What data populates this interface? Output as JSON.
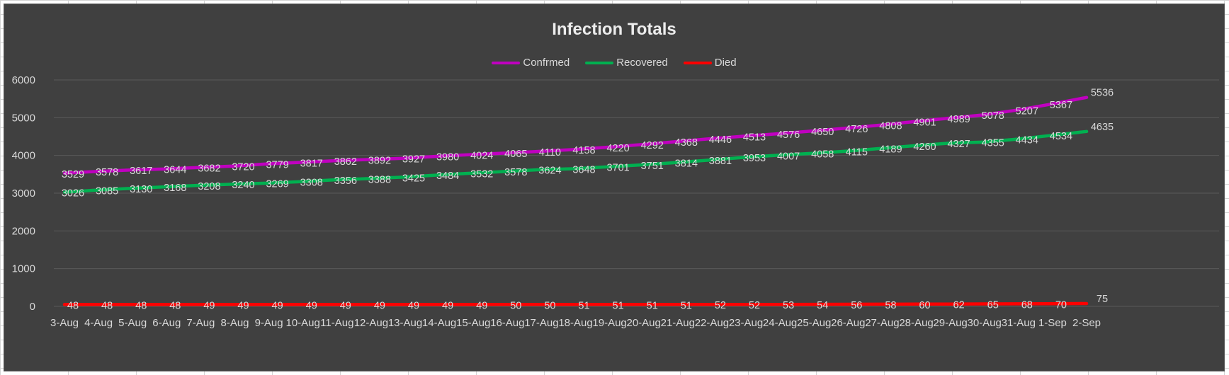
{
  "chart_data": {
    "type": "line",
    "title": "Infection Totals",
    "xlabel": "",
    "ylabel": "",
    "ylim": [
      0,
      6000
    ],
    "yticks": [
      0,
      1000,
      2000,
      3000,
      4000,
      5000,
      6000
    ],
    "grid": true,
    "legend_position": "top",
    "categories": [
      "3-Aug",
      "4-Aug",
      "5-Aug",
      "6-Aug",
      "7-Aug",
      "8-Aug",
      "9-Aug",
      "10-Aug",
      "11-Aug",
      "12-Aug",
      "13-Aug",
      "14-Aug",
      "15-Aug",
      "16-Aug",
      "17-Aug",
      "18-Aug",
      "19-Aug",
      "20-Aug",
      "21-Aug",
      "22-Aug",
      "23-Aug",
      "24-Aug",
      "25-Aug",
      "26-Aug",
      "27-Aug",
      "28-Aug",
      "29-Aug",
      "30-Aug",
      "31-Aug",
      "1-Sep",
      "2-Sep"
    ],
    "series": [
      {
        "name": "Confrmed",
        "color": "#c000c0",
        "values": [
          3529,
          3578,
          3617,
          3644,
          3682,
          3720,
          3779,
          3817,
          3862,
          3892,
          3927,
          3980,
          4024,
          4065,
          4110,
          4158,
          4220,
          4292,
          4368,
          4446,
          4513,
          4576,
          4650,
          4726,
          4808,
          4901,
          4989,
          5078,
          5207,
          5367,
          5536
        ]
      },
      {
        "name": "Recovered",
        "color": "#00b050",
        "values": [
          3026,
          3085,
          3130,
          3168,
          3208,
          3240,
          3269,
          3308,
          3356,
          3388,
          3425,
          3484,
          3532,
          3578,
          3624,
          3648,
          3701,
          3751,
          3814,
          3881,
          3953,
          4007,
          4058,
          4115,
          4189,
          4260,
          4327,
          4355,
          4434,
          4534,
          4635
        ]
      },
      {
        "name": "Died",
        "color": "#ff0000",
        "values": [
          48,
          48,
          48,
          48,
          49,
          49,
          49,
          49,
          49,
          49,
          49,
          49,
          49,
          50,
          50,
          51,
          51,
          51,
          51,
          52,
          52,
          53,
          54,
          56,
          58,
          60,
          62,
          65,
          68,
          70,
          75
        ]
      }
    ],
    "colors": {
      "background": "#404040",
      "gridline": "#5a5a5a",
      "text": "#d9d9d9"
    }
  }
}
